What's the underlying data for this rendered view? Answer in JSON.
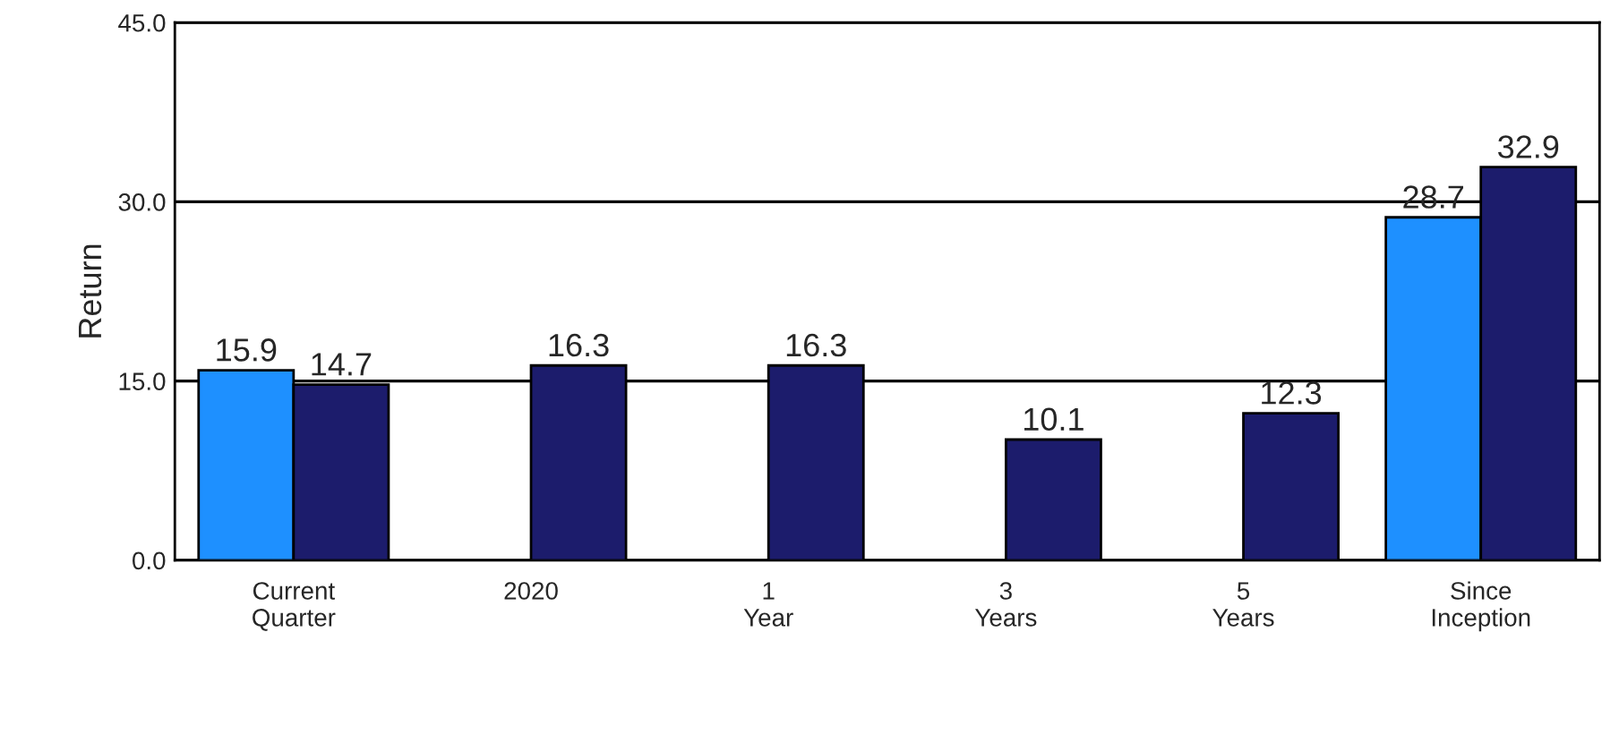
{
  "chart_data": {
    "type": "bar",
    "ylabel": "Return",
    "categories": [
      "Current\nQuarter",
      "2020",
      "1\nYear",
      "3\nYears",
      "5\nYears",
      "Since\nInception"
    ],
    "series": [
      {
        "color": "#1e90ff",
        "values": [
          15.9,
          null,
          null,
          null,
          null,
          28.7
        ]
      },
      {
        "color": "#1c1c6c",
        "values": [
          14.7,
          16.3,
          16.3,
          10.1,
          12.3,
          32.9
        ]
      }
    ],
    "ylim": [
      0,
      45
    ],
    "yticks": [
      {
        "value": 0,
        "label": "0.0"
      },
      {
        "value": 15,
        "label": "15.0"
      },
      {
        "value": 30,
        "label": "30.0"
      },
      {
        "value": 45,
        "label": "45.0"
      }
    ],
    "grid": "y",
    "data_labels": true
  }
}
